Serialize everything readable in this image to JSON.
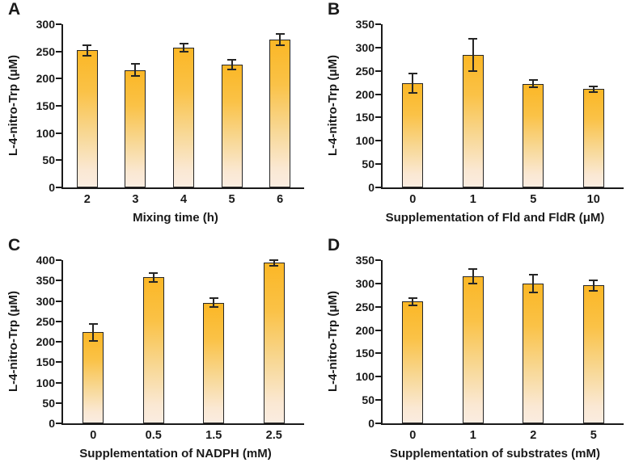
{
  "figure_styles": {
    "bar_gradient_top": "#FBB726",
    "bar_gradient_mid1": "#FAC247",
    "bar_gradient_mid2": "#F8D896",
    "bar_gradient_mid3": "#FAE8D3",
    "bar_gradient_bottom": "#FAECE0",
    "bar_outline_color": "#262626",
    "error_bar_color": "#262626",
    "axis_color": "#1a1a1a",
    "text_color": "#1a1a1a",
    "background_color": "#ffffff"
  },
  "chart_data": [
    {
      "type": "bar",
      "panel_label": "A",
      "title": "",
      "xlabel": "Mixing time (h)",
      "ylabel": "L-4-nitro-Trp (μM)",
      "categories": [
        "2",
        "3",
        "4",
        "5",
        "6"
      ],
      "values": [
        252,
        216,
        257,
        226,
        272
      ],
      "errors": [
        10,
        11,
        8,
        9,
        10
      ],
      "ylim": [
        0,
        300
      ],
      "ytick_step": 50,
      "ytick_labels": [
        "0",
        "50",
        "100",
        "150",
        "200",
        "250",
        "300"
      ],
      "grid": false,
      "legend": null
    },
    {
      "type": "bar",
      "panel_label": "B",
      "title": "",
      "xlabel": "Supplementation of Fld and FldR (μM)",
      "ylabel": "L-4-nitro-Trp (μM)",
      "categories": [
        "0",
        "1",
        "5",
        "10"
      ],
      "values": [
        223,
        284,
        222,
        211
      ],
      "errors": [
        21,
        34,
        8,
        6
      ],
      "ylim": [
        0,
        350
      ],
      "ytick_step": 50,
      "ytick_labels": [
        "0",
        "50",
        "100",
        "150",
        "200",
        "250",
        "300",
        "350"
      ],
      "grid": false,
      "legend": null
    },
    {
      "type": "bar",
      "panel_label": "C",
      "title": "",
      "xlabel": "Supplementation of NADPH (mM)",
      "ylabel": "L-4-nitro-Trp (μM)",
      "categories": [
        "0",
        "0.5",
        "1.5",
        "2.5"
      ],
      "values": [
        223,
        358,
        296,
        394
      ],
      "errors": [
        21,
        11,
        10,
        7
      ],
      "ylim": [
        0,
        400
      ],
      "ytick_step": 50,
      "ytick_labels": [
        "0",
        "50",
        "100",
        "150",
        "200",
        "250",
        "300",
        "350",
        "400"
      ],
      "grid": false,
      "legend": null
    },
    {
      "type": "bar",
      "panel_label": "D",
      "title": "",
      "xlabel": "Supplementation of substrates (mM)",
      "ylabel": "L-4-nitro-Trp (μM)",
      "categories": [
        "0",
        "1",
        "2",
        "5"
      ],
      "values": [
        261,
        315,
        300,
        296
      ],
      "errors": [
        8,
        16,
        19,
        11
      ],
      "ylim": [
        0,
        350
      ],
      "ytick_step": 50,
      "ytick_labels": [
        "0",
        "50",
        "100",
        "150",
        "200",
        "250",
        "300",
        "350"
      ],
      "grid": false,
      "legend": null
    }
  ]
}
